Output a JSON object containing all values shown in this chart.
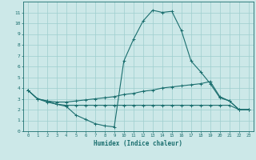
{
  "xlabel": "Humidex (Indice chaleur)",
  "bg_color": "#cce8e8",
  "line_color": "#1a6e6e",
  "grid_color": "#9ecece",
  "x_values": [
    0,
    1,
    2,
    3,
    4,
    5,
    6,
    7,
    8,
    9,
    10,
    11,
    12,
    13,
    14,
    15,
    16,
    17,
    18,
    19,
    20,
    21,
    22,
    23
  ],
  "line1": [
    3.8,
    3.0,
    2.7,
    2.5,
    2.3,
    1.5,
    1.1,
    0.7,
    0.5,
    0.4,
    6.5,
    8.5,
    10.2,
    11.2,
    11.0,
    11.1,
    9.3,
    6.5,
    5.5,
    4.4,
    3.1,
    2.8,
    2.0,
    2.0
  ],
  "line2": [
    3.8,
    3.0,
    2.8,
    2.7,
    2.7,
    2.8,
    2.9,
    3.0,
    3.1,
    3.2,
    3.4,
    3.5,
    3.7,
    3.8,
    4.0,
    4.1,
    4.2,
    4.3,
    4.4,
    4.6,
    3.2,
    2.8,
    2.0,
    2.0
  ],
  "line3": [
    3.8,
    3.0,
    2.8,
    2.5,
    2.4,
    2.4,
    2.4,
    2.4,
    2.4,
    2.4,
    2.4,
    2.4,
    2.4,
    2.4,
    2.4,
    2.4,
    2.4,
    2.4,
    2.4,
    2.4,
    2.4,
    2.4,
    2.0,
    2.0
  ],
  "ylim": [
    0,
    12
  ],
  "xlim": [
    -0.5,
    23.5
  ],
  "yticks": [
    0,
    1,
    2,
    3,
    4,
    5,
    6,
    7,
    8,
    9,
    10,
    11
  ],
  "xticks": [
    0,
    1,
    2,
    3,
    4,
    5,
    6,
    7,
    8,
    9,
    10,
    11,
    12,
    13,
    14,
    15,
    16,
    17,
    18,
    19,
    20,
    21,
    22,
    23
  ]
}
